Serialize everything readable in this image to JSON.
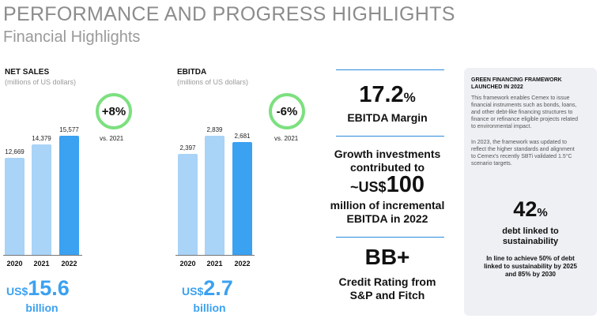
{
  "header": {
    "title": "PERFORMANCE AND PROGRESS HIGHLIGHTS",
    "subtitle": "Financial Highlights"
  },
  "net_sales": {
    "title": "NET SALES",
    "subtitle": "(millions of US dollars)",
    "badge": "+8%",
    "comparison": "vs. 2021",
    "total_prefix": "US$",
    "total_value": "15.6",
    "total_unit": "billion"
  },
  "ebitda": {
    "title": "EBITDA",
    "subtitle": "(millions of US dollars)",
    "badge": "-6%",
    "comparison": "vs. 2021",
    "total_prefix": "US$",
    "total_value": "2.7",
    "total_unit": "billion"
  },
  "chart_data": [
    {
      "type": "bar",
      "title": "NET SALES",
      "ylabel": "(millions of US dollars)",
      "categories": [
        "2020",
        "2021",
        "2022"
      ],
      "values": [
        12669,
        14379,
        15577
      ],
      "value_labels": [
        "12,669",
        "14,379",
        "15,577"
      ],
      "ylim": [
        0,
        17000
      ],
      "colors": [
        "#a9d3f7",
        "#a9d3f7",
        "#3ba1f1"
      ]
    },
    {
      "type": "bar",
      "title": "EBITDA",
      "ylabel": "(millions of US dollars)",
      "categories": [
        "2020",
        "2021",
        "2022"
      ],
      "values": [
        2397,
        2839,
        2681
      ],
      "value_labels": [
        "2,397",
        "2,839",
        "2,681"
      ],
      "ylim": [
        0,
        3100
      ],
      "colors": [
        "#a9d3f7",
        "#a9d3f7",
        "#3ba1f1"
      ]
    }
  ],
  "highlights": {
    "margin_value": "17.2",
    "margin_pct": "%",
    "margin_label": "EBITDA Margin",
    "growth_line1": "Growth investments",
    "growth_line2": "contributed to",
    "growth_prefix": "~US$",
    "growth_value": "100",
    "growth_line3": "million of incremental",
    "growth_line4": "EBITDA in 2022",
    "rating_value": "BB+",
    "rating_line1": "Credit Rating from",
    "rating_line2": "S&P and Fitch"
  },
  "green_panel": {
    "title_line1": "GREEN FINANCING FRAMEWORK",
    "title_line2": "LAUNCHED IN 2022",
    "para1_lines": [
      "This framework enables Cemex to issue",
      "financial instruments such as bonds, loans,",
      "and other debt-like financing structures to",
      "finance or refinance eligible projects related",
      "to environmental impact."
    ],
    "para2_lines": [
      "In 2023, the framework was updated to",
      "reflect the higher standards and alignment",
      "to Cemex's recently SBTi validated 1.5°C",
      "scenario targets."
    ],
    "kpi_value": "42",
    "kpi_pct": "%",
    "kpi_line1": "debt linked to",
    "kpi_line2": "sustainability",
    "kpi_note_lines": [
      "In line to achieve 50% of debt",
      "linked to sustainability by 2025",
      "and 85% by 2030"
    ]
  },
  "colors": {
    "accent": "#3ba1f1",
    "bar_light": "#a9d3f7",
    "badge_ring": "#7ce07f",
    "panel_bg": "#eef0f4"
  }
}
